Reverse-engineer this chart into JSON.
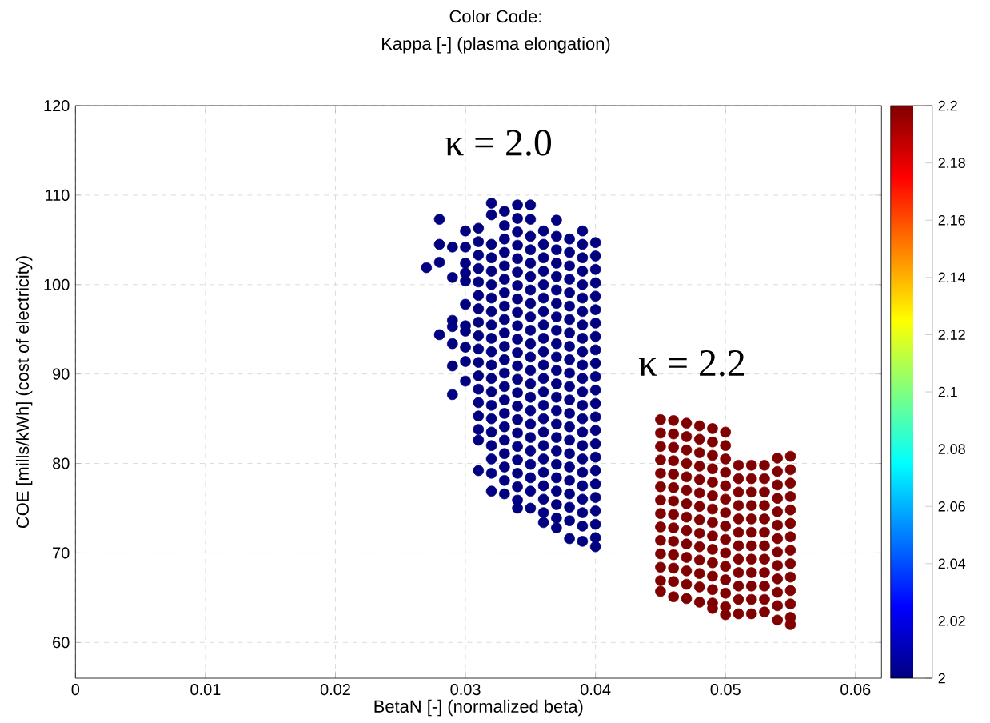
{
  "chart_data": {
    "type": "scatter",
    "title": "Color Code:",
    "subtitle": "Kappa [-] (plasma elongation)",
    "xlabel": "BetaN [-] (normalized beta)",
    "ylabel": "COE [mills/kWh] (cost of electricity)",
    "xlim": [
      0,
      0.062
    ],
    "ylim": [
      56,
      120
    ],
    "xticks": [
      0,
      0.01,
      0.02,
      0.03,
      0.04,
      0.05,
      0.06
    ],
    "yticks": [
      60,
      70,
      80,
      90,
      100,
      110,
      120
    ],
    "clim": [
      2,
      2.2
    ],
    "cticks": [
      2,
      2.02,
      2.04,
      2.06,
      2.08,
      2.1,
      2.12,
      2.14,
      2.16,
      2.18,
      2.2
    ],
    "grid": true,
    "marker": "circle",
    "annotations": [
      "κ = 2.0",
      "κ = 2.2"
    ],
    "series": [
      {
        "x": [
          0.027
        ],
        "values": [
          101.9
        ],
        "cvalues": [
          2
        ]
      },
      {
        "x": [
          0.028,
          0.028,
          0.028,
          0.028
        ],
        "values": [
          107.3,
          104.5,
          102.5,
          94.4
        ],
        "cvalues": [
          2,
          2,
          2,
          2
        ]
      },
      {
        "x": [
          0.029,
          0.029,
          0.029,
          0.029,
          0.029,
          0.029,
          0.029
        ],
        "values": [
          104.2,
          100.8,
          96.0,
          95.3,
          93.4,
          90.9,
          87.7
        ],
        "cvalues": [
          2,
          2,
          2,
          2,
          2,
          2,
          2
        ]
      },
      {
        "x": [
          0.03,
          0.03,
          0.03,
          0.03,
          0.03,
          0.03,
          0.03,
          0.03,
          0.03,
          0.03,
          0.03
        ],
        "values": [
          106.0,
          104.2,
          102.4,
          101.3,
          100.4,
          97.8,
          95.4,
          94.8,
          93.0,
          91.4,
          89.2
        ],
        "cvalues": [
          2,
          2,
          2,
          2,
          2,
          2,
          2,
          2,
          2,
          2,
          2
        ]
      },
      {
        "x": [
          0.031,
          0.031,
          0.031,
          0.031,
          0.031,
          0.031,
          0.031,
          0.031,
          0.031,
          0.031,
          0.031,
          0.031,
          0.031,
          0.031,
          0.031,
          0.031,
          0.031,
          0.031
        ],
        "values": [
          106.3,
          104.8,
          103.3,
          101.8,
          100.3,
          98.8,
          97.3,
          95.8,
          94.3,
          92.8,
          91.3,
          89.8,
          88.3,
          86.8,
          85.3,
          83.8,
          82.6,
          79.2
        ],
        "cvalues": [
          2,
          2,
          2,
          2,
          2,
          2,
          2,
          2,
          2,
          2,
          2,
          2,
          2,
          2,
          2,
          2,
          2,
          2
        ]
      },
      {
        "x": [
          0.032,
          0.032,
          0.032,
          0.032,
          0.032,
          0.032,
          0.032,
          0.032,
          0.032,
          0.032,
          0.032,
          0.032,
          0.032,
          0.032,
          0.032,
          0.032,
          0.032,
          0.032,
          0.032,
          0.032,
          0.032
        ],
        "values": [
          109.1,
          107.8,
          104.5,
          103.0,
          101.5,
          100.0,
          98.5,
          97.0,
          95.5,
          94.0,
          92.5,
          91.0,
          89.5,
          88.0,
          86.5,
          85.0,
          83.5,
          82.0,
          80.5,
          78.9,
          76.9
        ],
        "cvalues": [
          2,
          2,
          2,
          2,
          2,
          2,
          2,
          2,
          2,
          2,
          2,
          2,
          2,
          2,
          2,
          2,
          2,
          2,
          2,
          2,
          2
        ]
      },
      {
        "x": [
          0.033,
          0.033,
          0.033,
          0.033,
          0.033,
          0.033,
          0.033,
          0.033,
          0.033,
          0.033,
          0.033,
          0.033,
          0.033,
          0.033,
          0.033,
          0.033,
          0.033,
          0.033,
          0.033,
          0.033,
          0.033,
          0.033
        ],
        "values": [
          108.2,
          106.6,
          105.1,
          103.6,
          102.1,
          100.6,
          99.1,
          97.6,
          96.1,
          94.6,
          93.1,
          91.6,
          90.1,
          88.6,
          87.1,
          85.6,
          84.1,
          82.6,
          81.1,
          79.6,
          78.1,
          76.6
        ],
        "cvalues": [
          2,
          2,
          2,
          2,
          2,
          2,
          2,
          2,
          2,
          2,
          2,
          2,
          2,
          2,
          2,
          2,
          2,
          2,
          2,
          2,
          2,
          2
        ]
      },
      {
        "x": [
          0.034,
          0.034,
          0.034,
          0.034,
          0.034,
          0.034,
          0.034,
          0.034,
          0.034,
          0.034,
          0.034,
          0.034,
          0.034,
          0.034,
          0.034,
          0.034,
          0.034,
          0.034,
          0.034,
          0.034,
          0.034,
          0.034,
          0.034,
          0.034
        ],
        "values": [
          108.9,
          107.4,
          105.9,
          104.4,
          102.9,
          101.4,
          99.9,
          98.4,
          96.9,
          95.4,
          93.9,
          92.4,
          90.9,
          89.4,
          87.9,
          86.4,
          84.9,
          83.4,
          81.9,
          80.4,
          78.9,
          77.4,
          75.9,
          75.0
        ],
        "cvalues": [
          2,
          2,
          2,
          2,
          2,
          2,
          2,
          2,
          2,
          2,
          2,
          2,
          2,
          2,
          2,
          2,
          2,
          2,
          2,
          2,
          2,
          2,
          2,
          2
        ]
      },
      {
        "x": [
          0.035,
          0.035,
          0.035,
          0.035,
          0.035,
          0.035,
          0.035,
          0.035,
          0.035,
          0.035,
          0.035,
          0.035,
          0.035,
          0.035,
          0.035,
          0.035,
          0.035,
          0.035,
          0.035,
          0.035,
          0.035,
          0.035,
          0.035
        ],
        "values": [
          108.9,
          107.3,
          105.4,
          103.9,
          102.4,
          100.9,
          99.4,
          97.9,
          96.4,
          94.9,
          93.4,
          91.9,
          90.4,
          88.9,
          87.4,
          85.9,
          84.4,
          82.9,
          81.4,
          79.9,
          78.4,
          76.9,
          75.0
        ],
        "cvalues": [
          2,
          2,
          2,
          2,
          2,
          2,
          2,
          2,
          2,
          2,
          2,
          2,
          2,
          2,
          2,
          2,
          2,
          2,
          2,
          2,
          2,
          2,
          2
        ]
      },
      {
        "x": [
          0.036,
          0.036,
          0.036,
          0.036,
          0.036,
          0.036,
          0.036,
          0.036,
          0.036,
          0.036,
          0.036,
          0.036,
          0.036,
          0.036,
          0.036,
          0.036,
          0.036,
          0.036,
          0.036,
          0.036,
          0.036,
          0.036,
          0.036
        ],
        "values": [
          106.0,
          104.5,
          103.0,
          101.5,
          100.0,
          98.5,
          97.0,
          95.5,
          94.0,
          92.5,
          91.0,
          89.5,
          88.0,
          86.5,
          85.0,
          83.5,
          82.0,
          80.5,
          79.0,
          77.5,
          76.0,
          74.5,
          73.4
        ],
        "cvalues": [
          2,
          2,
          2,
          2,
          2,
          2,
          2,
          2,
          2,
          2,
          2,
          2,
          2,
          2,
          2,
          2,
          2,
          2,
          2,
          2,
          2,
          2,
          2
        ]
      },
      {
        "x": [
          0.037,
          0.037,
          0.037,
          0.037,
          0.037,
          0.037,
          0.037,
          0.037,
          0.037,
          0.037,
          0.037,
          0.037,
          0.037,
          0.037,
          0.037,
          0.037,
          0.037,
          0.037,
          0.037,
          0.037,
          0.037,
          0.037,
          0.037,
          0.037
        ],
        "values": [
          107.2,
          105.4,
          103.9,
          102.4,
          100.9,
          99.4,
          97.9,
          96.4,
          94.9,
          93.4,
          91.9,
          90.4,
          88.9,
          87.4,
          85.9,
          84.4,
          82.9,
          81.4,
          79.9,
          78.4,
          76.9,
          75.4,
          73.9,
          72.8
        ],
        "cvalues": [
          2,
          2,
          2,
          2,
          2,
          2,
          2,
          2,
          2,
          2,
          2,
          2,
          2,
          2,
          2,
          2,
          2,
          2,
          2,
          2,
          2,
          2,
          2,
          2
        ]
      },
      {
        "x": [
          0.038,
          0.038,
          0.038,
          0.038,
          0.038,
          0.038,
          0.038,
          0.038,
          0.038,
          0.038,
          0.038,
          0.038,
          0.038,
          0.038,
          0.038,
          0.038,
          0.038,
          0.038,
          0.038,
          0.038,
          0.038,
          0.038,
          0.038
        ],
        "values": [
          105.1,
          103.6,
          102.1,
          100.6,
          99.1,
          97.6,
          96.1,
          94.6,
          93.1,
          91.6,
          90.1,
          88.6,
          87.1,
          85.6,
          84.1,
          82.6,
          81.1,
          79.6,
          78.1,
          76.6,
          75.1,
          73.6,
          71.6
        ],
        "cvalues": [
          2,
          2,
          2,
          2,
          2,
          2,
          2,
          2,
          2,
          2,
          2,
          2,
          2,
          2,
          2,
          2,
          2,
          2,
          2,
          2,
          2,
          2,
          2
        ]
      },
      {
        "x": [
          0.039,
          0.039,
          0.039,
          0.039,
          0.039,
          0.039,
          0.039,
          0.039,
          0.039,
          0.039,
          0.039,
          0.039,
          0.039,
          0.039,
          0.039,
          0.039,
          0.039,
          0.039,
          0.039,
          0.039,
          0.039,
          0.039,
          0.039,
          0.039
        ],
        "values": [
          106.0,
          104.5,
          103.0,
          101.5,
          100.0,
          98.5,
          97.0,
          95.5,
          94.0,
          92.5,
          91.0,
          89.5,
          88.0,
          86.5,
          85.0,
          83.5,
          82.0,
          80.5,
          79.0,
          77.5,
          76.0,
          74.5,
          73.0,
          71.3
        ],
        "cvalues": [
          2,
          2,
          2,
          2,
          2,
          2,
          2,
          2,
          2,
          2,
          2,
          2,
          2,
          2,
          2,
          2,
          2,
          2,
          2,
          2,
          2,
          2,
          2,
          2
        ]
      },
      {
        "x": [
          0.04,
          0.04,
          0.04,
          0.04,
          0.04,
          0.04,
          0.04,
          0.04,
          0.04,
          0.04,
          0.04,
          0.04,
          0.04,
          0.04,
          0.04,
          0.04,
          0.04,
          0.04,
          0.04,
          0.04,
          0.04,
          0.04,
          0.04,
          0.04
        ],
        "values": [
          104.7,
          103.2,
          101.7,
          100.2,
          98.7,
          97.2,
          95.7,
          94.2,
          92.7,
          91.2,
          89.7,
          88.2,
          86.7,
          85.2,
          83.7,
          82.2,
          80.7,
          79.2,
          77.7,
          76.2,
          74.7,
          73.2,
          71.7,
          70.7
        ],
        "cvalues": [
          2,
          2,
          2,
          2,
          2,
          2,
          2,
          2,
          2,
          2,
          2,
          2,
          2,
          2,
          2,
          2,
          2,
          2,
          2,
          2,
          2,
          2,
          2,
          2
        ]
      },
      {
        "x": [
          0.045,
          0.045,
          0.045,
          0.045,
          0.045,
          0.045,
          0.045,
          0.045,
          0.045,
          0.045,
          0.045,
          0.045,
          0.045,
          0.045
        ],
        "values": [
          84.9,
          83.4,
          81.9,
          80.4,
          78.9,
          77.4,
          75.9,
          74.4,
          72.9,
          71.4,
          69.9,
          68.4,
          66.9,
          65.7
        ],
        "cvalues": [
          2.2,
          2.2,
          2.2,
          2.2,
          2.2,
          2.2,
          2.2,
          2.2,
          2.2,
          2.2,
          2.2,
          2.2,
          2.2,
          2.2
        ]
      },
      {
        "x": [
          0.046,
          0.046,
          0.046,
          0.046,
          0.046,
          0.046,
          0.046,
          0.046,
          0.046,
          0.046,
          0.046,
          0.046,
          0.046,
          0.046
        ],
        "values": [
          84.8,
          83.3,
          81.8,
          80.3,
          78.8,
          77.3,
          75.8,
          74.3,
          72.8,
          71.3,
          69.8,
          68.3,
          66.8,
          65.1
        ],
        "cvalues": [
          2.2,
          2.2,
          2.2,
          2.2,
          2.2,
          2.2,
          2.2,
          2.2,
          2.2,
          2.2,
          2.2,
          2.2,
          2.2,
          2.2
        ]
      },
      {
        "x": [
          0.047,
          0.047,
          0.047,
          0.047,
          0.047,
          0.047,
          0.047,
          0.047,
          0.047,
          0.047,
          0.047,
          0.047,
          0.047,
          0.047
        ],
        "values": [
          84.5,
          83.0,
          81.5,
          80.0,
          78.5,
          77.0,
          75.5,
          74.0,
          72.5,
          71.0,
          69.5,
          68.0,
          66.5,
          64.9
        ],
        "cvalues": [
          2.2,
          2.2,
          2.2,
          2.2,
          2.2,
          2.2,
          2.2,
          2.2,
          2.2,
          2.2,
          2.2,
          2.2,
          2.2,
          2.2
        ]
      },
      {
        "x": [
          0.048,
          0.048,
          0.048,
          0.048,
          0.048,
          0.048,
          0.048,
          0.048,
          0.048,
          0.048,
          0.048,
          0.048,
          0.048,
          0.048
        ],
        "values": [
          84.2,
          82.7,
          81.2,
          79.7,
          78.2,
          76.7,
          75.2,
          73.7,
          72.2,
          70.7,
          69.2,
          67.7,
          66.2,
          64.5
        ],
        "cvalues": [
          2.2,
          2.2,
          2.2,
          2.2,
          2.2,
          2.2,
          2.2,
          2.2,
          2.2,
          2.2,
          2.2,
          2.2,
          2.2,
          2.2
        ]
      },
      {
        "x": [
          0.049,
          0.049,
          0.049,
          0.049,
          0.049,
          0.049,
          0.049,
          0.049,
          0.049,
          0.049,
          0.049,
          0.049,
          0.049,
          0.049,
          0.049
        ],
        "values": [
          83.9,
          82.4,
          80.9,
          79.4,
          77.9,
          76.4,
          74.9,
          73.4,
          71.9,
          70.4,
          68.9,
          67.4,
          65.9,
          64.4,
          63.8
        ],
        "cvalues": [
          2.2,
          2.2,
          2.2,
          2.2,
          2.2,
          2.2,
          2.2,
          2.2,
          2.2,
          2.2,
          2.2,
          2.2,
          2.2,
          2.2,
          2.2
        ]
      },
      {
        "x": [
          0.05,
          0.05,
          0.05,
          0.05,
          0.05,
          0.05,
          0.05,
          0.05,
          0.05,
          0.05,
          0.05,
          0.05,
          0.05,
          0.05,
          0.05
        ],
        "values": [
          83.5,
          82.0,
          80.5,
          79.0,
          77.5,
          76.0,
          74.5,
          73.0,
          71.5,
          70.0,
          68.5,
          67.0,
          65.5,
          64.0,
          63.1
        ],
        "cvalues": [
          2.2,
          2.2,
          2.2,
          2.2,
          2.2,
          2.2,
          2.2,
          2.2,
          2.2,
          2.2,
          2.2,
          2.2,
          2.2,
          2.2,
          2.2
        ]
      },
      {
        "x": [
          0.051,
          0.051,
          0.051,
          0.051,
          0.051,
          0.051,
          0.051,
          0.051,
          0.051,
          0.051,
          0.051,
          0.051
        ],
        "values": [
          79.8,
          78.3,
          76.8,
          75.3,
          73.8,
          72.3,
          70.8,
          69.3,
          67.8,
          66.3,
          64.8,
          63.2
        ],
        "cvalues": [
          2.2,
          2.2,
          2.2,
          2.2,
          2.2,
          2.2,
          2.2,
          2.2,
          2.2,
          2.2,
          2.2,
          2.2
        ]
      },
      {
        "x": [
          0.052,
          0.052,
          0.052,
          0.052,
          0.052,
          0.052,
          0.052,
          0.052,
          0.052,
          0.052,
          0.052,
          0.052
        ],
        "values": [
          79.8,
          78.3,
          76.8,
          75.3,
          73.8,
          72.3,
          70.8,
          69.3,
          67.8,
          66.3,
          64.8,
          63.2
        ],
        "cvalues": [
          2.2,
          2.2,
          2.2,
          2.2,
          2.2,
          2.2,
          2.2,
          2.2,
          2.2,
          2.2,
          2.2,
          2.2
        ]
      },
      {
        "x": [
          0.053,
          0.053,
          0.053,
          0.053,
          0.053,
          0.053,
          0.053,
          0.053,
          0.053,
          0.053,
          0.053,
          0.053
        ],
        "values": [
          79.8,
          78.3,
          76.8,
          75.3,
          73.8,
          72.3,
          70.8,
          69.3,
          67.8,
          66.3,
          64.8,
          63.4
        ],
        "cvalues": [
          2.2,
          2.2,
          2.2,
          2.2,
          2.2,
          2.2,
          2.2,
          2.2,
          2.2,
          2.2,
          2.2,
          2.2
        ]
      },
      {
        "x": [
          0.054,
          0.054,
          0.054,
          0.054,
          0.054,
          0.054,
          0.054,
          0.054,
          0.054,
          0.054,
          0.054,
          0.054,
          0.054
        ],
        "values": [
          80.6,
          79.1,
          77.6,
          76.1,
          74.6,
          73.1,
          71.6,
          70.1,
          68.6,
          67.1,
          65.6,
          64.1,
          62.5
        ],
        "cvalues": [
          2.2,
          2.2,
          2.2,
          2.2,
          2.2,
          2.2,
          2.2,
          2.2,
          2.2,
          2.2,
          2.2,
          2.2,
          2.2
        ]
      },
      {
        "x": [
          0.055,
          0.055,
          0.055,
          0.055,
          0.055,
          0.055,
          0.055,
          0.055,
          0.055,
          0.055,
          0.055,
          0.055,
          0.055,
          0.055
        ],
        "values": [
          80.8,
          79.3,
          77.8,
          76.3,
          74.8,
          73.3,
          71.8,
          70.3,
          68.8,
          67.3,
          65.8,
          64.3,
          62.8,
          62.0
        ],
        "cvalues": [
          2.2,
          2.2,
          2.2,
          2.2,
          2.2,
          2.2,
          2.2,
          2.2,
          2.2,
          2.2,
          2.2,
          2.2,
          2.2,
          2.2
        ]
      }
    ]
  }
}
